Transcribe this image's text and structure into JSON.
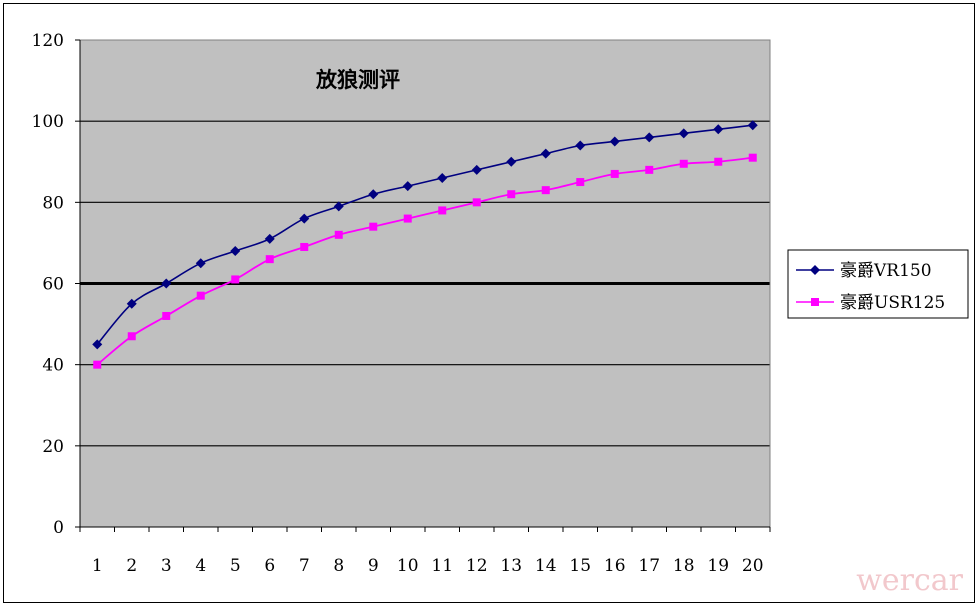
{
  "watermark": "wercar",
  "chart_data": {
    "type": "line",
    "title": "放狼测评",
    "xlabel": "",
    "ylabel": "",
    "categories": [
      "1",
      "2",
      "3",
      "4",
      "5",
      "6",
      "7",
      "8",
      "9",
      "10",
      "11",
      "12",
      "13",
      "14",
      "15",
      "16",
      "17",
      "18",
      "19",
      "20"
    ],
    "ylim": [
      0,
      120
    ],
    "yticks": [
      0,
      20,
      40,
      60,
      80,
      100,
      120
    ],
    "grid": true,
    "emphasized_gridline": 60,
    "legend_position": "right",
    "series": [
      {
        "name": "豪爵VR150",
        "color": "#000080",
        "marker": "diamond",
        "values": [
          45,
          55,
          60,
          65,
          68,
          71,
          76,
          79,
          82,
          84,
          86,
          88,
          90,
          92,
          94,
          95,
          96,
          97,
          98,
          99
        ]
      },
      {
        "name": "豪爵USR125",
        "color": "#ff00ff",
        "marker": "square",
        "values": [
          40,
          47,
          52,
          57,
          61,
          66,
          69,
          72,
          74,
          76,
          78,
          80,
          82,
          83,
          85,
          87,
          88,
          89.5,
          90,
          91
        ]
      }
    ]
  }
}
